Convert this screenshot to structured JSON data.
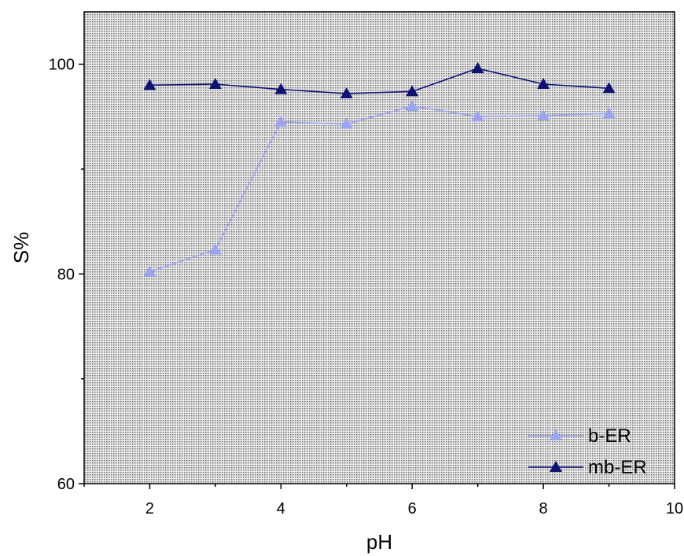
{
  "chart_data": {
    "type": "line",
    "title": "",
    "xlabel": "pH",
    "ylabel": "S%",
    "xlim": [
      1,
      10
    ],
    "ylim": [
      60,
      105
    ],
    "x_ticks": [
      2,
      4,
      6,
      8,
      10
    ],
    "y_ticks": [
      60,
      80,
      100
    ],
    "y_minor_ticks": [
      70,
      90
    ],
    "grid": false,
    "background": "dotted-gray",
    "legend_position": "bottom-right",
    "series": [
      {
        "name": "b-ER",
        "color": "#9aa4f0",
        "marker": "triangle-up",
        "x": [
          2,
          3,
          4,
          5,
          6,
          7,
          8,
          9
        ],
        "y": [
          80.2,
          82.3,
          94.5,
          94.3,
          96.0,
          95.0,
          95.1,
          95.3
        ]
      },
      {
        "name": "mb-ER",
        "color": "#0d1273",
        "marker": "triangle-up",
        "x": [
          2,
          3,
          4,
          5,
          6,
          7,
          8,
          9
        ],
        "y": [
          98.0,
          98.1,
          97.6,
          97.2,
          97.4,
          99.6,
          98.1,
          97.7
        ]
      }
    ]
  }
}
